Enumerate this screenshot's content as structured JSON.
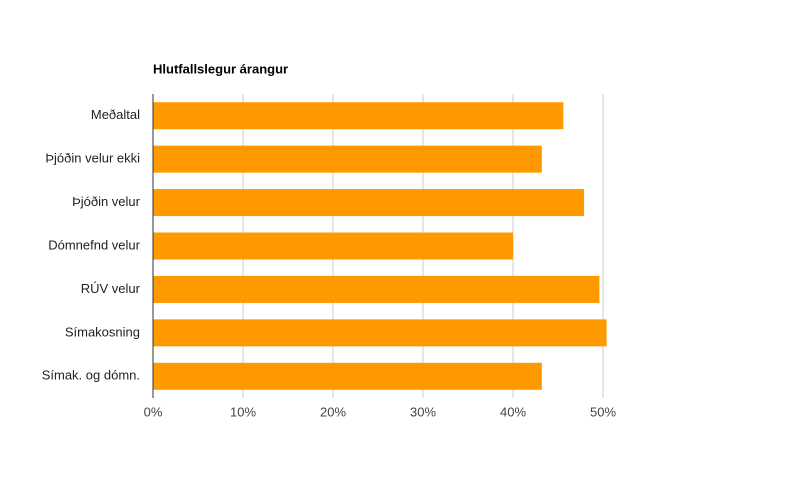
{
  "chart_data": {
    "type": "bar",
    "orientation": "horizontal",
    "title": "Hlutfallslegur árangur",
    "categories": [
      "Meðaltal",
      "Þjóðin velur ekki",
      "Þjóðin velur",
      "Dómnefnd velur",
      "RÚV velur",
      "Símakosning",
      "Símak. og dómn."
    ],
    "values": [
      45.6,
      43.2,
      47.9,
      40.0,
      49.6,
      50.4,
      43.2
    ],
    "color": "#ff9900",
    "xlim": [
      0,
      55
    ],
    "xticks": [
      {
        "value": 0,
        "label": "0%"
      },
      {
        "value": 10,
        "label": "10%"
      },
      {
        "value": 20,
        "label": "20%"
      },
      {
        "value": 30,
        "label": "30%"
      },
      {
        "value": 40,
        "label": "40%"
      },
      {
        "value": 50,
        "label": "50%"
      }
    ],
    "grid": true
  }
}
